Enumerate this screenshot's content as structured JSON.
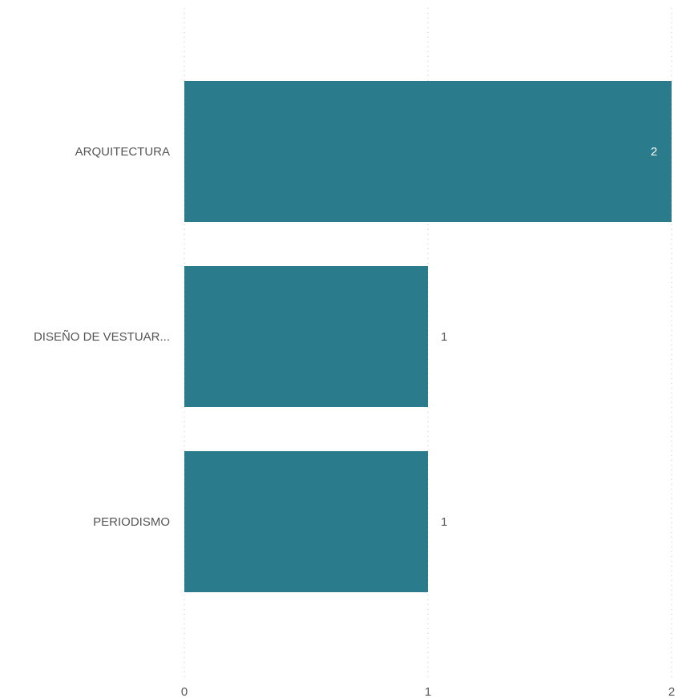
{
  "chart_data": {
    "type": "bar",
    "orientation": "horizontal",
    "title": "",
    "xlabel": "",
    "ylabel": "",
    "categories": [
      "ARQUITECTURA",
      "DISEÑO DE VESTUAR...",
      "PERIODISMO"
    ],
    "values": [
      2,
      1,
      1
    ],
    "xlim": [
      0,
      2
    ],
    "x_ticks": [
      0,
      1,
      2
    ],
    "grid": true,
    "legend": "none",
    "colors": {
      "bar": "#2a7b8c",
      "label_inside": "#ffffff",
      "label_outside": "#555555",
      "text": "#555555"
    }
  }
}
